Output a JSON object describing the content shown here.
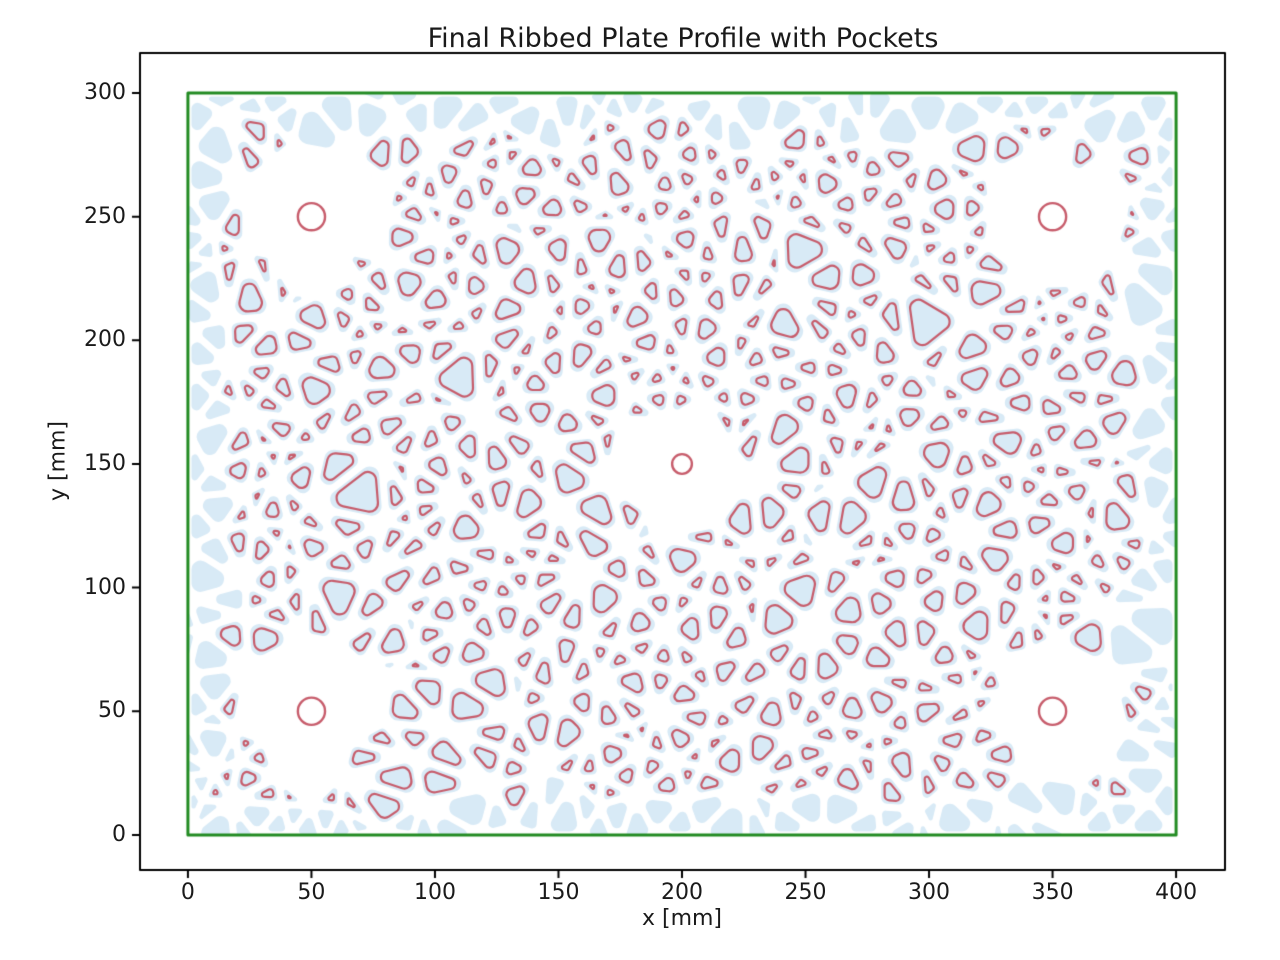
{
  "chart_data": {
    "type": "area",
    "subtype": "2d-cad-profile-plot",
    "title": "Final Ribbed Plate Profile with Pockets",
    "xlabel": "x [mm]",
    "ylabel": "y [mm]",
    "xlim": [
      -19.4,
      419.8
    ],
    "ylim": [
      -14.2,
      316.2
    ],
    "xticks": [
      0,
      50,
      100,
      150,
      200,
      250,
      300,
      350,
      400
    ],
    "yticks": [
      0,
      50,
      100,
      150,
      200,
      250,
      300
    ],
    "xtick_labels": [
      "0",
      "50",
      "100",
      "150",
      "200",
      "250",
      "300",
      "350",
      "400"
    ],
    "ytick_labels": [
      "0",
      "50",
      "100",
      "150",
      "200",
      "250",
      "300"
    ],
    "grid": false,
    "legend": "none",
    "plate_outline": {
      "x0": 0,
      "y0": 0,
      "x1": 400,
      "y1": 300,
      "edge_color": "#228B22",
      "line_width": 3
    },
    "holes": [
      {
        "cx": 50,
        "cy": 250,
        "r": 5.5,
        "clear_radius": 27
      },
      {
        "cx": 350,
        "cy": 250,
        "r": 5.5,
        "clear_radius": 27
      },
      {
        "cx": 200,
        "cy": 150,
        "r": 4.0,
        "clear_radius": 24
      },
      {
        "cx": 50,
        "cy": 50,
        "r": 5.5,
        "clear_radius": 27
      },
      {
        "cx": 350,
        "cy": 50,
        "r": 5.5,
        "clear_radius": 27
      }
    ],
    "pockets": {
      "style": "rounded-triangular-rib-pattern",
      "fill_color": "#d8eaf6",
      "edge_color": "#c75c6b",
      "edge_width": 2.2,
      "ring_start_radius": 30,
      "ring_spacing": 26,
      "point_arc_spacing": 26,
      "boundary_point_spacing": 24,
      "min_point_distance": 10.5,
      "inset_fill": 1.9,
      "inset_edge": 2.8,
      "corner_radius": 3.4,
      "seed": 11
    },
    "axes_style": {
      "spine_color": "#000000",
      "tick_color": "#000000",
      "tick_length": 8,
      "background": "#ffffff"
    }
  }
}
